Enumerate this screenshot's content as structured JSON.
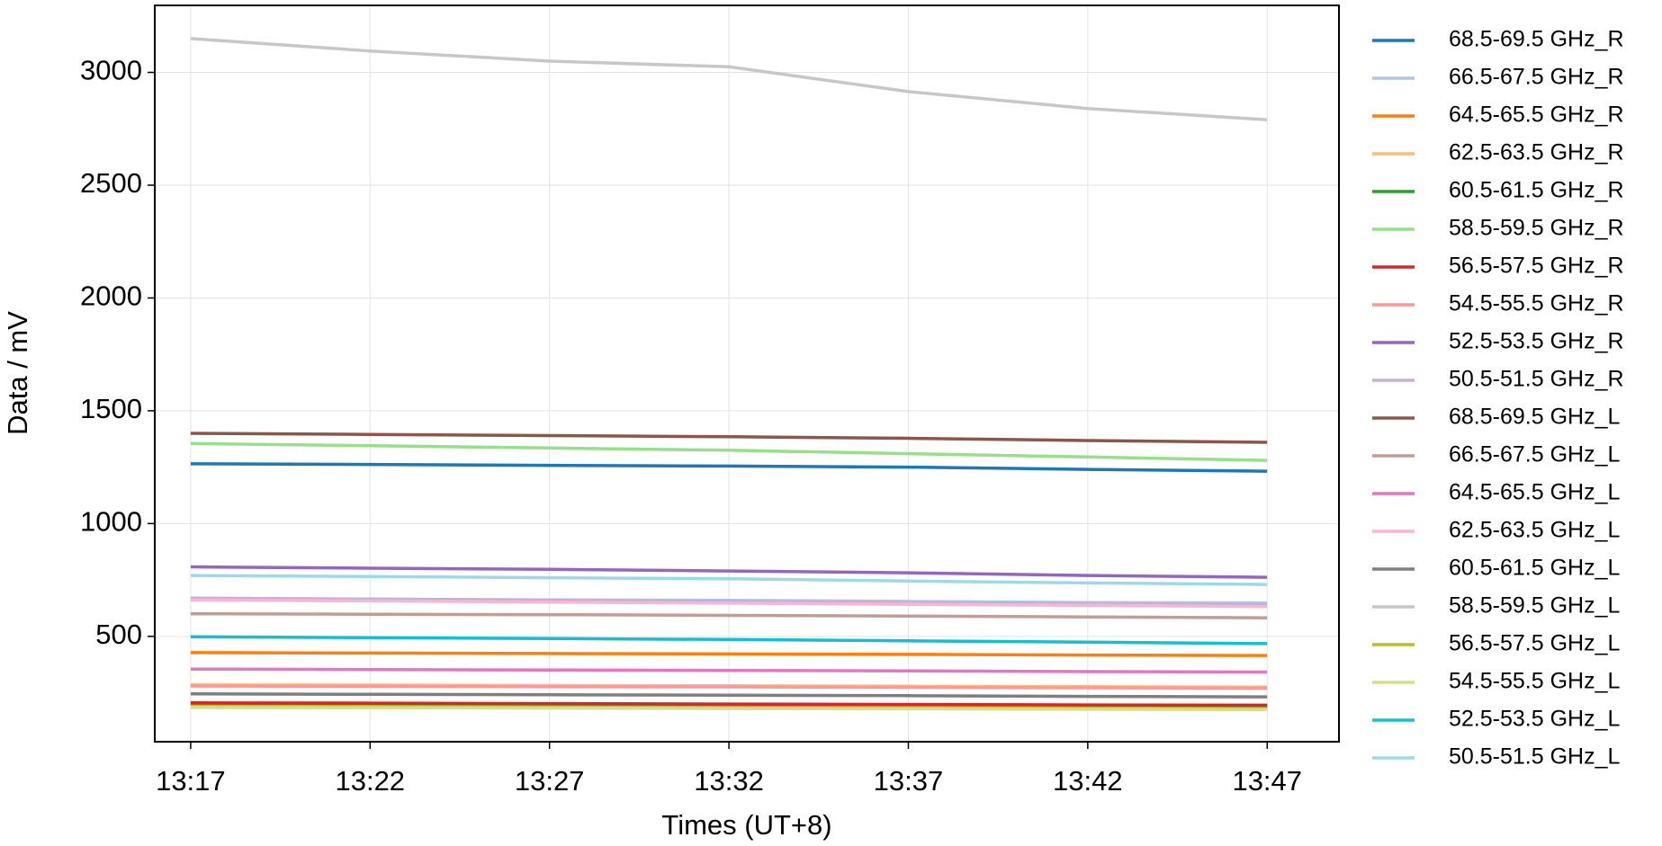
{
  "chart_data": {
    "type": "line",
    "xlabel": "Times (UT+8)",
    "ylabel": "Data / mV",
    "x": [
      "13:17",
      "13:22",
      "13:27",
      "13:32",
      "13:37",
      "13:42",
      "13:47"
    ],
    "xlim": [
      "13:16",
      "13:49"
    ],
    "xticks": [
      "13:17",
      "13:22",
      "13:27",
      "13:32",
      "13:37",
      "13:42",
      "13:47"
    ],
    "ylim": [
      33,
      3297
    ],
    "yticks": [
      500,
      1000,
      1500,
      2000,
      2500,
      3000
    ],
    "grid": true,
    "legend": "outside right",
    "series": [
      {
        "name": "68.5-69.5 GHz_R",
        "color": "#1f77b4",
        "values": [
          1265,
          1262,
          1258,
          1255,
          1250,
          1240,
          1232
        ]
      },
      {
        "name": "66.5-67.5 GHz_R",
        "color": "#aec7e8",
        "values": [
          668,
          665,
          662,
          660,
          655,
          650,
          648
        ]
      },
      {
        "name": "64.5-65.5 GHz_R",
        "color": "#ff7f0e",
        "values": [
          428,
          426,
          424,
          422,
          420,
          417,
          415
        ]
      },
      {
        "name": "62.5-63.5 GHz_R",
        "color": "#ffbb78",
        "values": [
          285,
          284,
          282,
          281,
          279,
          277,
          275
        ]
      },
      {
        "name": "60.5-61.5 GHz_R",
        "color": "#2ca02c",
        "values": [
          198,
          197,
          196,
          195,
          193,
          191,
          190
        ]
      },
      {
        "name": "58.5-59.5 GHz_R",
        "color": "#98df8a",
        "values": [
          1355,
          1345,
          1335,
          1325,
          1310,
          1295,
          1280
        ]
      },
      {
        "name": "56.5-57.5 GHz_R",
        "color": "#d62728",
        "values": [
          205,
          204,
          202,
          200,
          198,
          196,
          195
        ]
      },
      {
        "name": "54.5-55.5 GHz_R",
        "color": "#ff9896",
        "values": [
          280,
          279,
          277,
          276,
          274,
          272,
          270
        ]
      },
      {
        "name": "52.5-53.5 GHz_R",
        "color": "#9467bd",
        "values": [
          808,
          802,
          797,
          790,
          782,
          770,
          762
        ]
      },
      {
        "name": "50.5-51.5 GHz_R",
        "color": "#c5b0d5",
        "values": [
          670,
          665,
          660,
          655,
          650,
          645,
          640
        ]
      },
      {
        "name": "68.5-69.5 GHz_L",
        "color": "#8c564b",
        "values": [
          1400,
          1395,
          1390,
          1385,
          1378,
          1368,
          1360
        ]
      },
      {
        "name": "66.5-67.5 GHz_L",
        "color": "#c49c94",
        "values": [
          600,
          598,
          596,
          593,
          590,
          586,
          582
        ]
      },
      {
        "name": "64.5-65.5 GHz_L",
        "color": "#e377c2",
        "values": [
          355,
          353,
          351,
          349,
          347,
          344,
          342
        ]
      },
      {
        "name": "62.5-63.5 GHz_L",
        "color": "#f7b6d2",
        "values": [
          662,
          657,
          652,
          647,
          642,
          637,
          632
        ]
      },
      {
        "name": "60.5-61.5 GHz_L",
        "color": "#7f7f7f",
        "values": [
          245,
          243,
          241,
          239,
          237,
          234,
          232
        ]
      },
      {
        "name": "58.5-59.5 GHz_L",
        "color": "#c7c7c7",
        "values": [
          3150,
          3095,
          3050,
          3025,
          2915,
          2840,
          2790
        ]
      },
      {
        "name": "56.5-57.5 GHz_L",
        "color": "#bcbd22",
        "values": [
          190,
          189,
          187,
          185,
          184,
          182,
          180
        ]
      },
      {
        "name": "54.5-55.5 GHz_L",
        "color": "#dbdb8d",
        "values": [
          185,
          184,
          182,
          180,
          179,
          177,
          175
        ]
      },
      {
        "name": "52.5-53.5 GHz_L",
        "color": "#17becf",
        "values": [
          498,
          494,
          490,
          486,
          480,
          474,
          468
        ]
      },
      {
        "name": "50.5-51.5 GHz_L",
        "color": "#9edae5",
        "values": [
          770,
          765,
          760,
          755,
          745,
          737,
          730
        ]
      }
    ]
  }
}
